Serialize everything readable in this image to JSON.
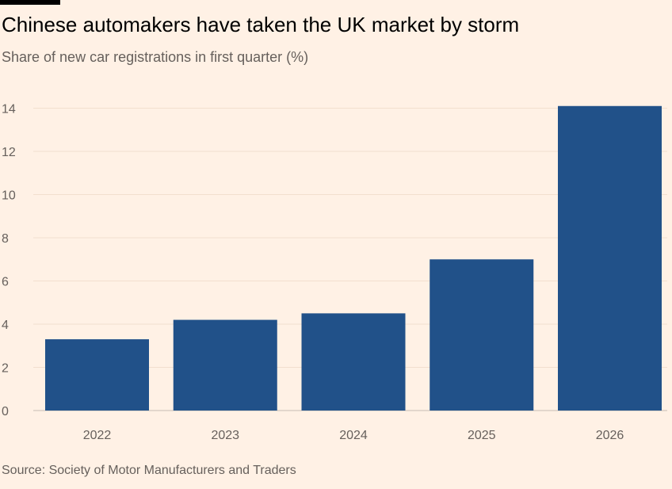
{
  "chart_data": {
    "type": "bar",
    "title": "Chinese automakers have taken the UK market by storm",
    "subtitle": "Share of new car registrations in first quarter (%)",
    "source": "Source: Society of Motor Manufacturers and Traders",
    "categories": [
      "2022",
      "2023",
      "2024",
      "2025",
      "2026"
    ],
    "values": [
      3.3,
      4.2,
      4.5,
      7.0,
      14.1
    ],
    "ylim": [
      0,
      14.5
    ],
    "yticks": [
      0,
      2,
      4,
      6,
      8,
      10,
      12,
      14
    ],
    "xlabel": "",
    "ylabel": "",
    "bar_color": "#215189",
    "grid": true
  }
}
